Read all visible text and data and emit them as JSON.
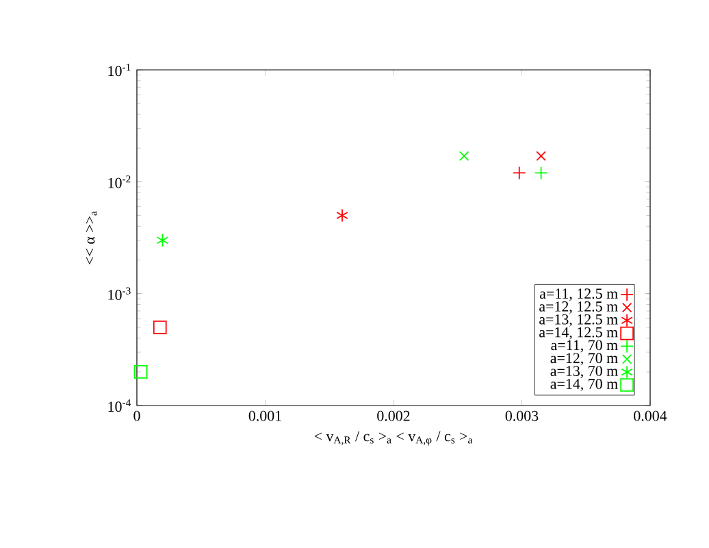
{
  "chart_data": {
    "type": "scatter",
    "xlabel": "< v$_{A,R}$ / c$_{s}$ >$_{a}$ < v$_{A,φ}$ / c$_{s}$ >$_{a}$",
    "ylabel": "<< α >>$_{a}$",
    "log": "y",
    "legend": "bottom right",
    "xlim": [
      0,
      0.004
    ],
    "ylim": [
      0.0001,
      0.1
    ],
    "xticks": [
      0,
      0.001,
      0.002,
      0.003,
      0.004
    ],
    "yticks": [
      {
        "value": 0.0001,
        "label": "10$^{-4}$"
      },
      {
        "value": 0.001,
        "label": "10$^{-3}$"
      },
      {
        "value": 0.01,
        "label": "10$^{-2}$"
      },
      {
        "value": 0.1,
        "label": "10$^{-1}$"
      }
    ],
    "series": [
      {
        "name": "a=11, 12.5 m",
        "color": "#ff0000",
        "marker": "plus",
        "x": [
          0.00298
        ],
        "values": [
          0.012
        ]
      },
      {
        "name": "a=12, 12.5 m",
        "color": "#ff0000",
        "marker": "cross",
        "x": [
          0.00315
        ],
        "values": [
          0.017
        ]
      },
      {
        "name": "a=13, 12.5 m",
        "color": "#ff0000",
        "x": [
          0.0016
        ],
        "values": [
          0.005
        ]
      },
      {
        "name": "a=14, 12.5 m",
        "color": "#ff0000",
        "marker": "square",
        "x": [
          0.00018
        ],
        "values": [
          0.0005
        ]
      },
      {
        "name": "a=11, 70 m",
        "color": "#00ff00",
        "marker": "plus",
        "x": [
          0.00315
        ],
        "values": [
          0.012
        ]
      },
      {
        "name": "a=12, 70 m",
        "color": "#00ff00",
        "marker": "cross",
        "x": [
          0.00255
        ],
        "values": [
          0.017
        ]
      },
      {
        "name": "a=13, 70 m",
        "color": "#00ff00",
        "x": [
          0.0002
        ],
        "values": [
          0.003
        ]
      },
      {
        "name": "a=14, 70 m",
        "color": "#00ff00",
        "marker": "square",
        "x": [
          3e-05
        ],
        "values": [
          0.0002
        ]
      }
    ]
  }
}
